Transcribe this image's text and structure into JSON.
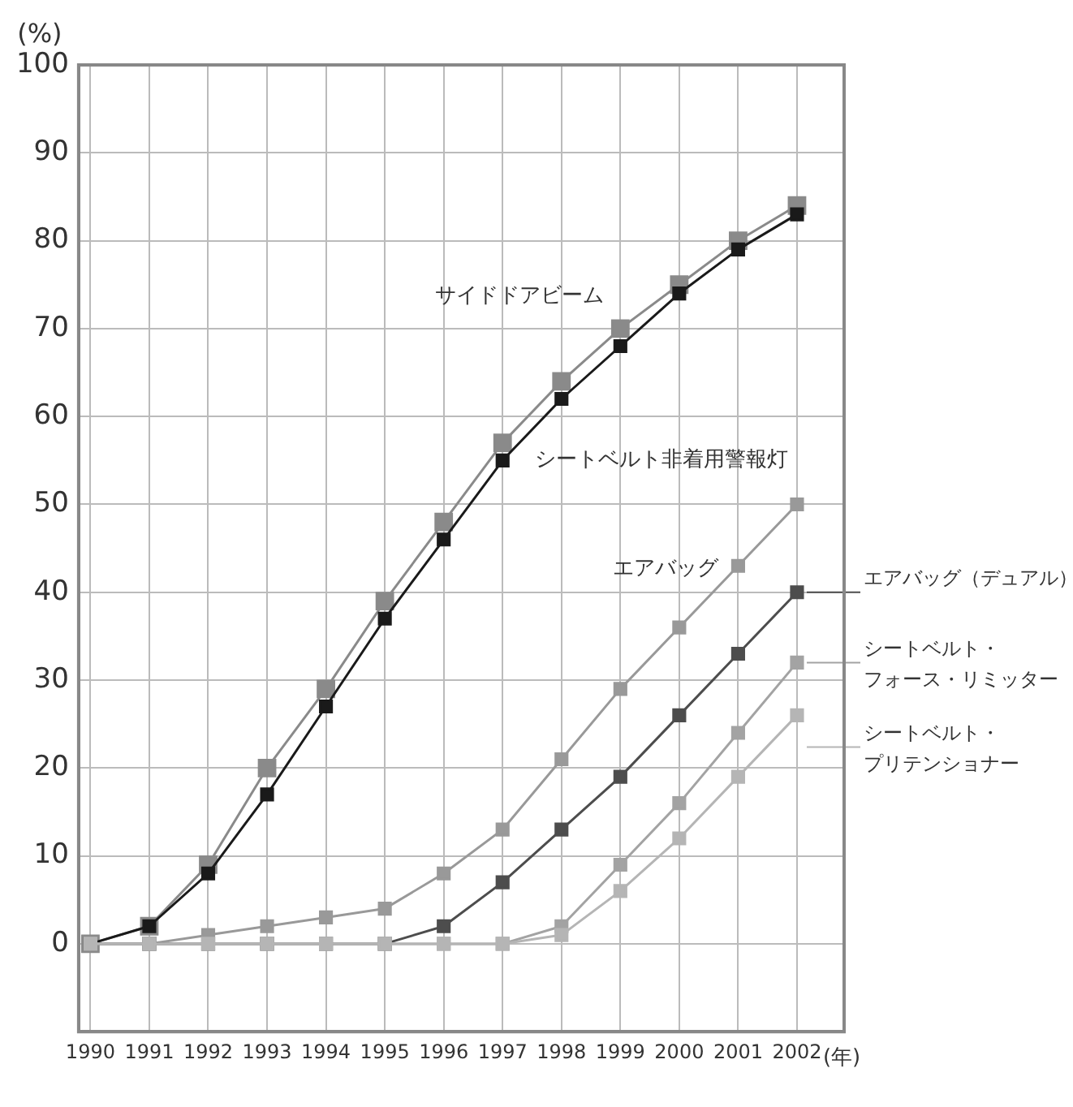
{
  "chart_data": {
    "type": "line",
    "ylabel": "(%)",
    "xlabel": "(年)",
    "x": [
      1990,
      1991,
      1992,
      1993,
      1994,
      1995,
      1996,
      1997,
      1998,
      1999,
      2000,
      2001,
      2002
    ],
    "xlim": [
      1989.8,
      2002.8
    ],
    "xticks": [
      1990,
      1991,
      1992,
      1993,
      1994,
      1995,
      1996,
      1997,
      1998,
      1999,
      2000,
      2001,
      2002
    ],
    "ylim": [
      -10,
      100
    ],
    "yticks": [
      0,
      10,
      20,
      30,
      40,
      50,
      60,
      70,
      80,
      90,
      100
    ],
    "grid": true,
    "legend": "right",
    "marker": "square",
    "line_style": "solid",
    "series": [
      {
        "name": "サイドドアビーム",
        "color": "#8a8a8a",
        "values": [
          0,
          2,
          9,
          20,
          29,
          39,
          48,
          57,
          64,
          70,
          75,
          80,
          84
        ]
      },
      {
        "name": "シートベルト非着用警報灯",
        "color": "#1a1a1a",
        "values": [
          0,
          2,
          8,
          17,
          27,
          37,
          46,
          55,
          62,
          68,
          74,
          79,
          83
        ]
      },
      {
        "name": "エアバッグ",
        "color": "#999999",
        "values": [
          0,
          0,
          1,
          2,
          3,
          4,
          8,
          13,
          21,
          29,
          36,
          43,
          50
        ]
      },
      {
        "name": "エアバッグ（デュアル）",
        "color": "#4d4d4d",
        "values": [
          0,
          0,
          0,
          0,
          0,
          0,
          2,
          7,
          13,
          19,
          26,
          33,
          40
        ]
      },
      {
        "name": "シートベルト・フォース・リミッター",
        "color": "#a3a3a3",
        "values": [
          0,
          0,
          0,
          0,
          0,
          0,
          0,
          0,
          2,
          9,
          16,
          24,
          32
        ]
      },
      {
        "name": "シートベルト・プリテンショナー",
        "color": "#b5b5b5",
        "values": [
          0,
          0,
          0,
          0,
          0,
          0,
          0,
          0,
          1,
          6,
          12,
          19,
          26
        ]
      }
    ]
  }
}
